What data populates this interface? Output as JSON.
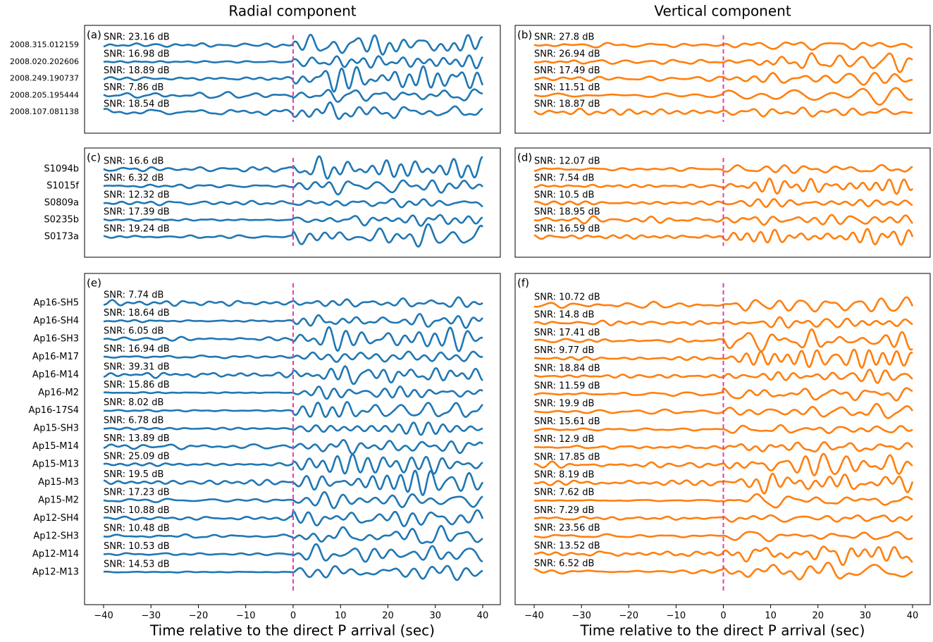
{
  "chart_data": [
    {
      "type": "waveform",
      "title": "Radial component",
      "panel_label": "(a)",
      "color": "#1f77b4",
      "stations": [
        "2008.315.012159",
        "2008.020.202606",
        "2008.249.190737",
        "2008.205.195444",
        "2008.107.081138"
      ],
      "annotations": [
        "SNR: 23.16 dB",
        "SNR: 16.98 dB",
        "SNR: 18.89 dB",
        "SNR: 7.86 dB",
        "SNR: 18.54 dB"
      ],
      "xlim": [
        -40,
        40
      ],
      "reference_line": 0
    },
    {
      "type": "waveform",
      "title": "Vertical component",
      "panel_label": "(b)",
      "color": "#ff7f0e",
      "annotations": [
        "SNR: 27.8 dB",
        "SNR: 26.94 dB",
        "SNR: 17.49 dB",
        "SNR: 11.51 dB",
        "SNR: 18.87 dB"
      ],
      "xlim": [
        -40,
        40
      ],
      "reference_line": 0
    },
    {
      "type": "waveform",
      "panel_label": "(c)",
      "color": "#1f77b4",
      "stations": [
        "S1094b",
        "S1015f",
        "S0809a",
        "S0235b",
        "S0173a"
      ],
      "annotations": [
        "SNR: 16.6 dB",
        "SNR: 6.32 dB",
        "SNR: 12.32 dB",
        "SNR: 17.39 dB",
        "SNR: 19.24 dB"
      ],
      "xlim": [
        -40,
        40
      ],
      "reference_line": 0
    },
    {
      "type": "waveform",
      "panel_label": "(d)",
      "color": "#ff7f0e",
      "annotations": [
        "SNR: 12.07 dB",
        "SNR: 7.54 dB",
        "SNR: 10.5 dB",
        "SNR: 18.95 dB",
        "SNR: 16.59 dB"
      ],
      "xlim": [
        -40,
        40
      ],
      "reference_line": 0
    },
    {
      "type": "waveform",
      "panel_label": "(e)",
      "color": "#1f77b4",
      "stations": [
        "Ap16-SH5",
        "Ap16-SH4",
        "Ap16-SH3",
        "Ap16-M17",
        "Ap16-M14",
        "Ap16-M2",
        "Ap16-17S4",
        "Ap15-SH3",
        "Ap15-M14",
        "Ap15-M13",
        "Ap15-M3",
        "Ap15-M2",
        "Ap12-SH4",
        "Ap12-SH3",
        "Ap12-M14",
        "Ap12-M13"
      ],
      "annotations": [
        "SNR: 7.74 dB",
        "SNR: 18.64 dB",
        "SNR: 6.05 dB",
        "SNR: 16.94 dB",
        "SNR: 39.31 dB",
        "SNR: 15.86 dB",
        "SNR: 8.02 dB",
        "SNR: 6.78 dB",
        "SNR: 13.89 dB",
        "SNR: 25.09 dB",
        "SNR: 19.5 dB",
        "SNR: 17.23 dB",
        "SNR: 10.88 dB",
        "SNR: 10.48 dB",
        "SNR: 10.53 dB",
        "SNR: 14.53 dB"
      ],
      "xlim": [
        -40,
        40
      ],
      "reference_line": 0,
      "xticks": [
        {
          "value": -40,
          "label": "−40"
        },
        {
          "value": -30,
          "label": "−30"
        },
        {
          "value": -20,
          "label": "−20"
        },
        {
          "value": -10,
          "label": "−10"
        },
        0,
        10,
        20,
        30,
        40
      ],
      "xlabel": "Time relative to the direct P arrival (sec)"
    },
    {
      "type": "waveform",
      "panel_label": "(f)",
      "color": "#ff7f0e",
      "annotations": [
        "SNR: 10.72 dB",
        "SNR: 14.8 dB",
        "SNR: 17.41 dB",
        "SNR: 9.77 dB",
        "SNR: 18.84 dB",
        "SNR: 11.59 dB",
        "SNR: 19.9 dB",
        "SNR: 15.61 dB",
        "SNR: 12.9 dB",
        "SNR: 17.85 dB",
        "SNR: 8.19 dB",
        "SNR: 7.62 dB",
        "SNR: 7.29 dB",
        "SNR: 23.56 dB",
        "SNR: 13.52 dB",
        "SNR: 6.52 dB"
      ],
      "xlim": [
        -40,
        40
      ],
      "reference_line": 0,
      "xticks": [
        {
          "value": -40,
          "label": "−40"
        },
        {
          "value": -30,
          "label": "−30"
        },
        {
          "value": -20,
          "label": "−20"
        },
        {
          "value": -10,
          "label": "−10"
        },
        0,
        10,
        20,
        30,
        40
      ],
      "xlabel": "Time relative to the direct P arrival (sec)"
    }
  ]
}
